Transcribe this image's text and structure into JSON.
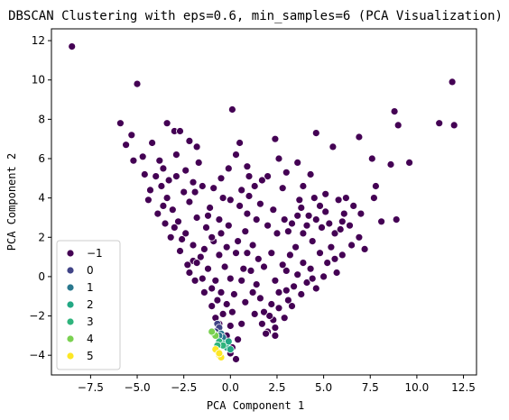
{
  "chart_data": {
    "type": "scatter",
    "title": "DBSCAN Clustering with eps=0.6, min_samples=6 (PCA Visualization)",
    "xlabel": "PCA Component 1",
    "ylabel": "PCA Component 2",
    "xlim": [
      -9.6,
      13.2
    ],
    "ylim": [
      -5.0,
      12.6
    ],
    "x_ticks": [
      -7.5,
      -5.0,
      -2.5,
      0.0,
      2.5,
      5.0,
      7.5,
      10.0,
      12.5
    ],
    "x_tick_labels": [
      "−7.5",
      "−5.0",
      "−2.5",
      "0.0",
      "2.5",
      "5.0",
      "7.5",
      "10.0",
      "12.5"
    ],
    "y_ticks": [
      -4,
      -2,
      0,
      2,
      4,
      6,
      8,
      10,
      12
    ],
    "y_tick_labels": [
      "−4",
      "−2",
      "0",
      "2",
      "4",
      "6",
      "8",
      "10",
      "12"
    ],
    "grid": false,
    "legend_position": "lower-left",
    "legend": [
      {
        "label": "−1",
        "color": "#440154"
      },
      {
        "label": "0",
        "color": "#414487"
      },
      {
        "label": "1",
        "color": "#2a788e"
      },
      {
        "label": "2",
        "color": "#22a884"
      },
      {
        "label": "3",
        "color": "#2fb47c"
      },
      {
        "label": "4",
        "color": "#7ad151"
      },
      {
        "label": "5",
        "color": "#fde725"
      }
    ],
    "series": [
      {
        "cluster": "−1",
        "color": "#440154",
        "points": [
          [
            -8.5,
            11.7
          ],
          [
            -5.0,
            9.8
          ],
          [
            0.1,
            8.5
          ],
          [
            11.9,
            9.9
          ],
          [
            12.0,
            7.7
          ],
          [
            11.2,
            7.8
          ],
          [
            8.8,
            8.4
          ],
          [
            9.0,
            7.7
          ],
          [
            -5.9,
            7.8
          ],
          [
            -5.3,
            7.2
          ],
          [
            -3.4,
            7.8
          ],
          [
            -3.0,
            7.4
          ],
          [
            -2.7,
            7.4
          ],
          [
            -2.2,
            6.9
          ],
          [
            -1.8,
            6.6
          ],
          [
            -5.6,
            6.7
          ],
          [
            -5.2,
            5.9
          ],
          [
            -4.2,
            6.8
          ],
          [
            -3.8,
            5.9
          ],
          [
            -1.7,
            5.8
          ],
          [
            0.5,
            6.8
          ],
          [
            0.3,
            6.2
          ],
          [
            1.0,
            5.1
          ],
          [
            1.3,
            4.6
          ],
          [
            2.4,
            7.0
          ],
          [
            2.6,
            6.0
          ],
          [
            2.0,
            5.1
          ],
          [
            3.0,
            5.3
          ],
          [
            3.6,
            5.8
          ],
          [
            4.6,
            7.3
          ],
          [
            4.3,
            5.2
          ],
          [
            5.5,
            6.6
          ],
          [
            6.9,
            7.1
          ],
          [
            7.6,
            6.0
          ],
          [
            8.6,
            5.7
          ],
          [
            9.6,
            5.8
          ],
          [
            7.8,
            4.6
          ],
          [
            7.7,
            4.0
          ],
          [
            8.1,
            2.8
          ],
          [
            8.9,
            2.9
          ],
          [
            7.0,
            3.2
          ],
          [
            6.6,
            3.6
          ],
          [
            6.1,
            3.2
          ],
          [
            6.4,
            2.6
          ],
          [
            5.6,
            2.2
          ],
          [
            5.1,
            3.3
          ],
          [
            4.5,
            4.0
          ],
          [
            4.2,
            3.1
          ],
          [
            3.8,
            3.5
          ],
          [
            3.3,
            2.7
          ],
          [
            3.1,
            2.3
          ],
          [
            3.5,
            1.5
          ],
          [
            4.4,
            1.8
          ],
          [
            4.8,
            1.2
          ],
          [
            5.2,
            0.7
          ],
          [
            5.0,
            0.0
          ],
          [
            4.6,
            -0.6
          ],
          [
            4.1,
            -0.3
          ],
          [
            3.6,
            0.1
          ],
          [
            3.0,
            0.3
          ],
          [
            2.6,
            -0.8
          ],
          [
            2.2,
            -1.4
          ],
          [
            2.3,
            -2.2
          ],
          [
            2.0,
            -2.8
          ],
          [
            2.4,
            -3.0
          ],
          [
            1.8,
            -1.8
          ],
          [
            1.6,
            -1.1
          ],
          [
            1.4,
            -0.4
          ],
          [
            1.8,
            0.5
          ],
          [
            2.2,
            1.2
          ],
          [
            2.5,
            2.2
          ],
          [
            2.0,
            2.6
          ],
          [
            1.4,
            2.9
          ],
          [
            0.9,
            3.2
          ],
          [
            0.5,
            3.6
          ],
          [
            0.0,
            3.9
          ],
          [
            -0.4,
            4.0
          ],
          [
            -0.1,
            2.6
          ],
          [
            0.4,
            1.8
          ],
          [
            0.9,
            1.2
          ],
          [
            1.1,
            0.3
          ],
          [
            0.6,
            -0.2
          ],
          [
            0.2,
            -0.9
          ],
          [
            0.1,
            -1.8
          ],
          [
            0.0,
            -2.5
          ],
          [
            -0.2,
            -3.0
          ],
          [
            0.1,
            -3.6
          ],
          [
            0.3,
            -4.2
          ],
          [
            -0.2,
            -1.4
          ],
          [
            -0.5,
            -0.8
          ],
          [
            -0.8,
            -0.2
          ],
          [
            -1.2,
            0.4
          ],
          [
            -1.6,
            1.0
          ],
          [
            -2.0,
            1.6
          ],
          [
            -2.4,
            2.2
          ],
          [
            -2.8,
            2.8
          ],
          [
            -3.1,
            3.4
          ],
          [
            -3.4,
            4.0
          ],
          [
            -3.7,
            4.6
          ],
          [
            -4.0,
            5.1
          ],
          [
            -3.3,
            4.9
          ],
          [
            -2.9,
            5.1
          ],
          [
            -2.5,
            4.3
          ],
          [
            -2.2,
            3.8
          ],
          [
            -1.8,
            3.0
          ],
          [
            -1.3,
            2.5
          ],
          [
            -0.9,
            1.8
          ],
          [
            -0.6,
            1.1
          ],
          [
            -0.3,
            0.5
          ],
          [
            0.0,
            -0.1
          ],
          [
            -0.4,
            -1.9
          ],
          [
            -0.7,
            -1.2
          ],
          [
            -1.0,
            -0.6
          ],
          [
            -1.5,
            -0.1
          ],
          [
            -2.0,
            0.8
          ],
          [
            -2.6,
            1.9
          ],
          [
            -3.0,
            2.5
          ],
          [
            -3.6,
            3.6
          ],
          [
            -4.3,
            4.4
          ],
          [
            -4.6,
            5.2
          ],
          [
            -1.5,
            4.6
          ],
          [
            -1.9,
            4.3
          ],
          [
            -1.1,
            3.5
          ],
          [
            -0.6,
            2.9
          ],
          [
            1.6,
            3.7
          ],
          [
            2.8,
            4.5
          ],
          [
            3.9,
            4.6
          ],
          [
            4.8,
            3.6
          ],
          [
            5.8,
            3.9
          ],
          [
            6.2,
            4.0
          ],
          [
            6.9,
            2.0
          ],
          [
            7.2,
            1.4
          ],
          [
            5.6,
            0.9
          ],
          [
            5.4,
            1.5
          ],
          [
            4.9,
            2.5
          ],
          [
            3.9,
            2.2
          ],
          [
            3.2,
            1.1
          ],
          [
            2.8,
            0.6
          ],
          [
            2.4,
            -0.2
          ],
          [
            1.7,
            -2.4
          ],
          [
            1.9,
            -2.9
          ],
          [
            2.1,
            -2.0
          ],
          [
            2.6,
            -1.6
          ],
          [
            3.1,
            -1.2
          ],
          [
            3.4,
            -0.5
          ],
          [
            3.9,
            0.7
          ],
          [
            4.3,
            0.4
          ],
          [
            0.6,
            4.4
          ],
          [
            1.0,
            4.1
          ],
          [
            0.8,
            2.3
          ],
          [
            0.3,
            1.2
          ],
          [
            -0.5,
            2.2
          ],
          [
            -1.0,
            2.0
          ],
          [
            -1.4,
            1.4
          ],
          [
            -1.8,
            0.7
          ],
          [
            -2.2,
            0.2
          ],
          [
            -0.6,
            -2.4
          ],
          [
            -0.3,
            -3.3
          ],
          [
            0.0,
            -3.9
          ],
          [
            0.4,
            -3.2
          ],
          [
            0.6,
            -2.4
          ],
          [
            0.8,
            -1.3
          ],
          [
            1.2,
            -0.8
          ],
          [
            -4.4,
            3.9
          ],
          [
            -3.9,
            3.2
          ],
          [
            -3.5,
            2.7
          ],
          [
            -3.2,
            2.0
          ],
          [
            -2.7,
            1.3
          ],
          [
            -2.3,
            0.6
          ],
          [
            -1.9,
            -0.2
          ],
          [
            -1.4,
            -0.8
          ],
          [
            -1.0,
            -1.5
          ],
          [
            -0.8,
            -2.1
          ],
          [
            2.9,
            2.9
          ],
          [
            3.6,
            3.1
          ],
          [
            4.1,
            2.6
          ],
          [
            4.6,
            2.9
          ],
          [
            5.3,
            2.7
          ],
          [
            5.9,
            2.4
          ],
          [
            6.5,
            1.6
          ],
          [
            6.0,
            1.1
          ],
          [
            5.7,
            0.2
          ],
          [
            4.4,
            -0.1
          ],
          [
            3.8,
            -0.9
          ],
          [
            3.3,
            -1.5
          ],
          [
            2.9,
            -2.1
          ],
          [
            -0.1,
            5.5
          ],
          [
            0.9,
            5.6
          ],
          [
            -2.9,
            6.2
          ],
          [
            -4.7,
            6.1
          ],
          [
            -3.6,
            5.5
          ],
          [
            -2.4,
            5.4
          ],
          [
            1.7,
            4.9
          ],
          [
            2.3,
            3.4
          ],
          [
            1.2,
            1.6
          ],
          [
            1.5,
            0.9
          ],
          [
            0.7,
            0.4
          ],
          [
            -0.2,
            1.5
          ],
          [
            -1.2,
            3.1
          ],
          [
            -2.0,
            4.8
          ],
          [
            -0.9,
            4.5
          ],
          [
            -0.5,
            5.0
          ],
          [
            3.7,
            3.9
          ],
          [
            5.1,
            4.2
          ],
          [
            6.0,
            2.8
          ],
          [
            3.0,
            -0.7
          ],
          [
            2.4,
            -2.6
          ],
          [
            1.3,
            -1.9
          ]
        ]
      },
      {
        "cluster": "0",
        "color": "#414487",
        "points": [
          [
            -0.7,
            -2.4
          ],
          [
            -0.6,
            -2.6
          ],
          [
            -0.8,
            -2.8
          ]
        ]
      },
      {
        "cluster": "1",
        "color": "#2a788e",
        "points": [
          [
            -0.5,
            -2.9
          ],
          [
            -0.4,
            -3.1
          ],
          [
            -0.6,
            -3.0
          ]
        ]
      },
      {
        "cluster": "2",
        "color": "#22a884",
        "points": [
          [
            -0.2,
            -3.6
          ],
          [
            0.0,
            -3.7
          ],
          [
            -0.4,
            -3.4
          ],
          [
            -0.1,
            -3.3
          ]
        ]
      },
      {
        "cluster": "3",
        "color": "#2fb47c",
        "points": [
          [
            -0.6,
            -3.3
          ],
          [
            -0.4,
            -3.5
          ],
          [
            -0.7,
            -3.5
          ]
        ]
      },
      {
        "cluster": "4",
        "color": "#7ad151",
        "points": [
          [
            -0.9,
            -2.9
          ],
          [
            -0.8,
            -3.0
          ],
          [
            -1.0,
            -2.8
          ]
        ]
      },
      {
        "cluster": "5",
        "color": "#fde725",
        "points": [
          [
            -0.7,
            -3.8
          ],
          [
            -0.6,
            -4.0
          ],
          [
            -0.5,
            -4.1
          ],
          [
            -0.8,
            -3.7
          ],
          [
            -0.6,
            -3.9
          ]
        ]
      }
    ]
  }
}
